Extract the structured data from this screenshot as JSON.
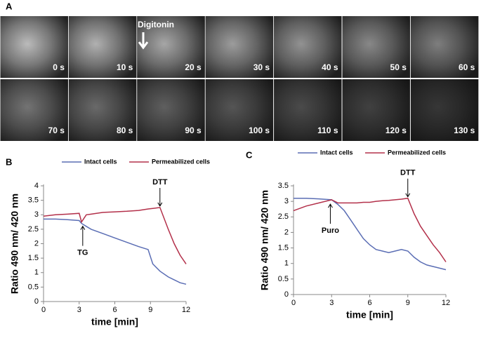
{
  "panel_a": {
    "label": "A",
    "annotation": "Digitonin",
    "frames": [
      "0 s",
      "10 s",
      "20 s",
      "30 s",
      "40 s",
      "50 s",
      "60 s",
      "70 s",
      "80 s",
      "90 s",
      "100 s",
      "110 s",
      "120 s",
      "130 s"
    ]
  },
  "chart_data": [
    {
      "type": "line",
      "panel_label": "B",
      "ylabel": "Ratio 490 nm/ 420 nm",
      "xlabel": "time [min]",
      "x": [
        0,
        1,
        2,
        3,
        3.2,
        3.6,
        4,
        5,
        6,
        7,
        8,
        8.8,
        9.2,
        9.8,
        10.5,
        11,
        11.5,
        12
      ],
      "series": [
        {
          "name": "Intact cells",
          "color": "#5a6db4",
          "values": [
            2.85,
            2.85,
            2.83,
            2.8,
            2.7,
            2.6,
            2.5,
            2.35,
            2.2,
            2.05,
            1.9,
            1.8,
            1.3,
            1.05,
            0.85,
            0.75,
            0.65,
            0.6
          ]
        },
        {
          "name": "Permeabilized cells",
          "color": "#b3304a",
          "values": [
            2.95,
            3.0,
            3.02,
            3.05,
            2.75,
            3.0,
            3.02,
            3.08,
            3.1,
            3.12,
            3.15,
            3.2,
            3.22,
            3.25,
            2.5,
            2.0,
            1.6,
            1.3
          ]
        }
      ],
      "annotations": [
        {
          "text": "DTT",
          "x": 9.8,
          "y": 3.25,
          "dir": "down"
        },
        {
          "text": "TG",
          "x": 3.3,
          "y": 2.7,
          "dir": "up"
        }
      ],
      "xlim": [
        0,
        12
      ],
      "xticks": [
        0,
        3,
        6,
        9,
        12
      ],
      "ylim": [
        0,
        4
      ],
      "yticks": [
        0,
        0.5,
        1,
        1.5,
        2,
        2.5,
        3,
        3.5,
        4
      ]
    },
    {
      "type": "line",
      "panel_label": "C",
      "ylabel": "Ratio 490 nm/ 420 nm",
      "xlabel": "time [min]",
      "x": [
        0,
        1,
        2,
        3,
        3.5,
        4,
        4.5,
        5,
        5.5,
        6,
        6.5,
        7,
        7.5,
        8,
        8.5,
        9,
        9.5,
        10,
        10.5,
        11,
        11.5,
        12
      ],
      "series": [
        {
          "name": "Intact cells",
          "color": "#5a6db4",
          "values": [
            3.1,
            3.1,
            3.08,
            3.05,
            2.9,
            2.7,
            2.4,
            2.1,
            1.8,
            1.6,
            1.45,
            1.4,
            1.35,
            1.4,
            1.45,
            1.4,
            1.2,
            1.05,
            0.95,
            0.9,
            0.85,
            0.8
          ]
        },
        {
          "name": "Permeabilized cells",
          "color": "#b3304a",
          "values": [
            2.7,
            2.85,
            2.95,
            3.05,
            2.95,
            2.95,
            2.95,
            2.95,
            2.97,
            2.97,
            3.0,
            3.02,
            3.03,
            3.05,
            3.07,
            3.1,
            2.6,
            2.2,
            1.9,
            1.6,
            1.35,
            1.05
          ]
        }
      ],
      "annotations": [
        {
          "text": "DTT",
          "x": 9,
          "y": 3.1,
          "dir": "down"
        },
        {
          "text": "Puro",
          "x": 2.9,
          "y": 3.0,
          "dir": "up"
        }
      ],
      "xlim": [
        0,
        12
      ],
      "xticks": [
        0,
        3,
        6,
        9,
        12
      ],
      "ylim": [
        0,
        3.5
      ],
      "yticks": [
        0,
        0.5,
        1,
        1.5,
        2,
        2.5,
        3,
        3.5
      ]
    }
  ]
}
